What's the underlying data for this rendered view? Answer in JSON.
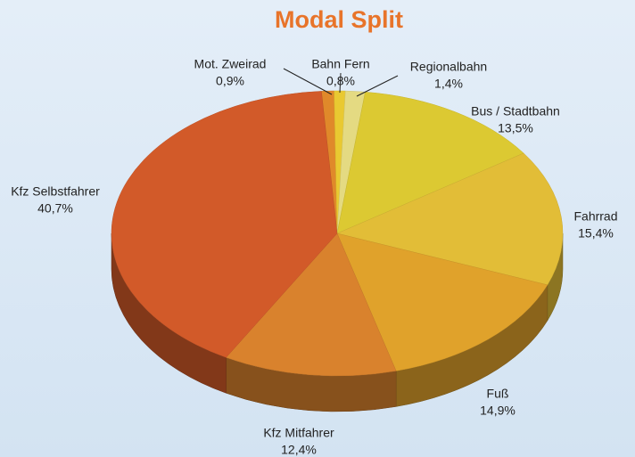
{
  "chart_data": {
    "type": "pie",
    "title": "Modal Split",
    "categories": [
      "Mot. Zweirad",
      "Bahn Fern",
      "Regionalbahn",
      "Bus / Stadtbahn",
      "Fahrrad",
      "Fuß",
      "Kfz Mitfahrer",
      "Kfz Selbstfahrer"
    ],
    "values": [
      0.9,
      0.8,
      1.4,
      13.5,
      15.4,
      14.9,
      12.4,
      40.7
    ],
    "value_labels": [
      "0,9%",
      "0,8%",
      "1,4%",
      "13,5%",
      "15,4%",
      "14,9%",
      "12,4%",
      "40,7%"
    ],
    "colors": [
      "#e0892a",
      "#e9c931",
      "#e4da82",
      "#dcc932",
      "#e2bd37",
      "#e0a22b",
      "#d9822d",
      "#d25a29"
    ]
  }
}
